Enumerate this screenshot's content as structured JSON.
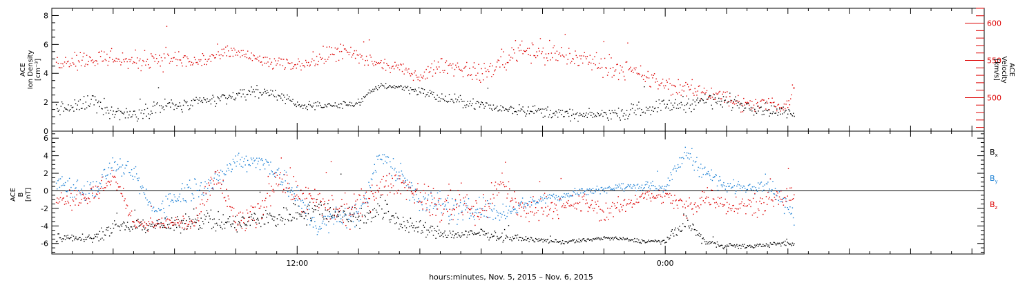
{
  "chart_data": [
    {
      "type": "scatter",
      "panel": "top",
      "ylabel_left": [
        "ACE",
        "Ion Density",
        "[cm⁻³]"
      ],
      "ylabel_right": [
        "ACE",
        "Velocity",
        "[km/s]"
      ],
      "ylim_left": [
        0,
        8.5
      ],
      "yticks_left": [
        0,
        2,
        4,
        6,
        8
      ],
      "ylim_right": [
        455,
        620
      ],
      "yticks_right": [
        500,
        550,
        600
      ],
      "xlim_hours": [
        0,
        45.6
      ],
      "colors": {
        "density": "#000000",
        "velocity": "#dd0000"
      },
      "series": [
        {
          "key": "density",
          "axis": "left",
          "x": [
            0.2,
            1.0,
            2.0,
            3.0,
            4.0,
            5.0,
            6.0,
            7.0,
            8.0,
            9.0,
            10.0,
            11.0,
            12.0,
            13.0,
            14.0,
            15.0,
            16.0,
            17.0,
            18.0,
            19.0,
            20.0,
            21.0,
            22.0,
            23.0,
            24.0,
            25.0,
            26.0,
            27.0,
            28.0,
            29.0,
            30.0,
            31.0,
            32.0,
            33.0,
            34.0,
            35.0,
            36.0,
            36.3
          ],
          "values": [
            1.6,
            1.6,
            2.2,
            1.3,
            1.2,
            1.7,
            1.8,
            1.9,
            2.2,
            2.5,
            2.8,
            2.6,
            1.8,
            1.8,
            1.8,
            2.0,
            3.2,
            3.1,
            2.8,
            2.3,
            2.1,
            1.8,
            1.6,
            1.5,
            1.4,
            1.2,
            1.1,
            1.2,
            1.3,
            1.6,
            1.8,
            1.9,
            2.2,
            2.1,
            1.8,
            1.5,
            1.3,
            1.1
          ],
          "spread": [
            0.45,
            0.45,
            0.5,
            0.45,
            0.4,
            0.5,
            0.45,
            0.45,
            0.4,
            0.35,
            0.35,
            0.35,
            0.2,
            0.2,
            0.2,
            0.25,
            0.2,
            0.2,
            0.3,
            0.35,
            0.3,
            0.35,
            0.3,
            0.3,
            0.35,
            0.35,
            0.3,
            0.3,
            0.4,
            0.4,
            0.4,
            0.45,
            0.45,
            0.45,
            0.4,
            0.35,
            0.3,
            0.25
          ]
        },
        {
          "key": "velocity",
          "axis": "right",
          "x": [
            0.2,
            1.0,
            2.0,
            3.0,
            4.0,
            5.0,
            6.0,
            7.0,
            8.0,
            9.0,
            10.0,
            11.0,
            12.0,
            13.0,
            14.0,
            15.0,
            16.0,
            17.0,
            18.0,
            19.0,
            20.0,
            21.0,
            22.0,
            23.0,
            24.0,
            25.0,
            26.0,
            27.0,
            28.0,
            29.0,
            30.0,
            31.0,
            32.0,
            33.0,
            34.0,
            35.0,
            36.0,
            36.3
          ],
          "values": [
            548,
            552,
            552,
            555,
            548,
            555,
            552,
            548,
            556,
            562,
            552,
            545,
            545,
            552,
            563,
            554,
            545,
            540,
            528,
            545,
            540,
            532,
            548,
            568,
            560,
            556,
            552,
            545,
            538,
            528,
            517,
            512,
            508,
            500,
            490,
            493,
            490,
            520
          ],
          "spread": [
            8,
            10,
            12,
            12,
            12,
            14,
            12,
            10,
            10,
            8,
            8,
            8,
            6,
            10,
            12,
            10,
            6,
            6,
            6,
            10,
            10,
            10,
            12,
            14,
            14,
            13,
            12,
            12,
            11,
            11,
            10,
            10,
            10,
            10,
            9,
            9,
            8,
            8
          ]
        }
      ]
    },
    {
      "type": "scatter",
      "panel": "bottom",
      "ylabel_left": [
        "ACE",
        "B",
        "[nT]"
      ],
      "ylim_left": [
        -7.2,
        6.8
      ],
      "yticks_left": [
        -6,
        -4,
        -2,
        0,
        2,
        4,
        6
      ],
      "zero_line": true,
      "xlim_hours": [
        0,
        45.6
      ],
      "x_ticks": [
        {
          "hours": 12,
          "label": "12:00"
        },
        {
          "hours": 30,
          "label": "0:00"
        }
      ],
      "colors": {
        "bx": "#000000",
        "by": "#1a7fd4",
        "bz": "#dd0000"
      },
      "legend": [
        {
          "key": "bx",
          "main": "B",
          "sub": "x"
        },
        {
          "key": "by",
          "main": "B",
          "sub": "y"
        },
        {
          "key": "bz",
          "main": "B",
          "sub": "z"
        }
      ],
      "series": [
        {
          "key": "bx",
          "x": [
            0.2,
            1.0,
            2.0,
            3.0,
            4.0,
            5.0,
            6.0,
            7.0,
            8.0,
            9.0,
            10.0,
            11.0,
            12.0,
            13.0,
            14.0,
            15.0,
            16.0,
            17.0,
            18.0,
            19.0,
            20.0,
            21.0,
            22.0,
            23.0,
            24.0,
            25.0,
            26.0,
            27.0,
            28.0,
            29.0,
            30.0,
            31.0,
            32.0,
            33.0,
            34.0,
            35.0,
            36.0,
            36.3
          ],
          "values": [
            -5.3,
            -5.2,
            -5.3,
            -4.2,
            -4.0,
            -3.8,
            -4.0,
            -3.0,
            -3.5,
            -3.8,
            -3.2,
            -3.0,
            -2.5,
            -2.0,
            -2.5,
            -3.0,
            -1.8,
            -3.5,
            -4.2,
            -4.8,
            -5.0,
            -4.8,
            -5.2,
            -5.4,
            -5.6,
            -5.8,
            -5.6,
            -5.3,
            -5.5,
            -5.7,
            -5.7,
            -3.5,
            -5.9,
            -6.2,
            -6.3,
            -6.1,
            -6.0,
            -6.1
          ],
          "spread": [
            0.5,
            0.4,
            0.4,
            0.6,
            0.6,
            0.6,
            0.7,
            1.0,
            1.0,
            0.9,
            1.0,
            1.1,
            1.1,
            1.2,
            1.2,
            1.2,
            1.3,
            1.0,
            0.8,
            0.6,
            0.5,
            0.5,
            0.4,
            0.2,
            0.2,
            0.2,
            0.2,
            0.2,
            0.2,
            0.2,
            0.2,
            1.0,
            0.3,
            0.3,
            0.2,
            0.2,
            0.3,
            0.4
          ]
        },
        {
          "key": "by",
          "x": [
            0.2,
            1.0,
            2.0,
            3.0,
            4.0,
            5.0,
            6.0,
            7.0,
            8.0,
            9.0,
            10.0,
            11.0,
            12.0,
            13.0,
            14.0,
            15.0,
            16.0,
            17.0,
            18.0,
            19.0,
            20.0,
            21.0,
            22.0,
            23.0,
            24.0,
            25.0,
            26.0,
            27.0,
            28.0,
            29.0,
            30.0,
            31.0,
            32.0,
            33.0,
            34.0,
            35.0,
            36.0,
            36.3
          ],
          "values": [
            1.2,
            0.5,
            0.0,
            3.0,
            2.0,
            -2.5,
            -0.5,
            0.5,
            1.0,
            3.5,
            3.5,
            2.5,
            -1.0,
            -4.0,
            -3.0,
            -2.5,
            4.0,
            2.0,
            -1.0,
            -1.5,
            -2.5,
            -2.0,
            -2.5,
            -1.5,
            -0.8,
            -0.5,
            0.0,
            0.3,
            0.5,
            0.6,
            0.5,
            4.5,
            2.0,
            0.5,
            0.5,
            1.0,
            -2.0,
            -3.0
          ],
          "spread": [
            0.9,
            1.1,
            1.2,
            0.8,
            0.9,
            1.0,
            1.3,
            1.3,
            1.0,
            1.0,
            0.8,
            1.2,
            1.3,
            1.0,
            1.2,
            1.3,
            0.6,
            1.5,
            1.2,
            1.2,
            1.2,
            1.2,
            0.8,
            0.6,
            0.5,
            0.5,
            0.4,
            0.4,
            0.4,
            0.4,
            0.5,
            0.8,
            1.0,
            0.6,
            0.6,
            0.8,
            1.0,
            1.0
          ]
        },
        {
          "key": "bz",
          "x": [
            0.2,
            1.0,
            2.0,
            3.0,
            4.0,
            5.0,
            6.0,
            7.0,
            8.0,
            9.0,
            10.0,
            11.0,
            12.0,
            13.0,
            14.0,
            15.0,
            16.0,
            17.0,
            18.0,
            19.0,
            20.0,
            21.0,
            22.0,
            23.0,
            24.0,
            25.0,
            26.0,
            27.0,
            28.0,
            29.0,
            30.0,
            31.0,
            32.0,
            33.0,
            34.0,
            35.0,
            36.0,
            36.3
          ],
          "values": [
            -0.5,
            -0.8,
            -0.5,
            1.8,
            -3.5,
            -3.8,
            -3.5,
            -3.8,
            2.0,
            -3.5,
            -3.0,
            2.0,
            -0.5,
            -1.5,
            -2.5,
            -2.0,
            0.5,
            1.0,
            -0.5,
            -2.0,
            -1.0,
            -2.5,
            1.0,
            -2.5,
            -1.5,
            -2.0,
            -1.2,
            -2.5,
            -1.5,
            -0.5,
            -0.5,
            -2.0,
            -0.5,
            -1.5,
            -1.5,
            -1.5,
            -0.5,
            -1.0
          ],
          "spread": [
            0.8,
            1.0,
            1.2,
            1.0,
            0.6,
            0.6,
            0.8,
            1.0,
            1.6,
            1.3,
            1.3,
            1.8,
            1.5,
            1.6,
            1.5,
            1.6,
            1.0,
            1.2,
            1.2,
            1.6,
            1.6,
            1.4,
            1.2,
            1.5,
            1.0,
            1.0,
            1.0,
            1.0,
            0.8,
            0.6,
            0.7,
            1.2,
            1.0,
            1.0,
            0.8,
            1.0,
            1.0,
            0.8
          ]
        }
      ]
    }
  ],
  "x_caption": "hours:minutes, Nov.  5, 2015 – Nov.  6, 2015"
}
